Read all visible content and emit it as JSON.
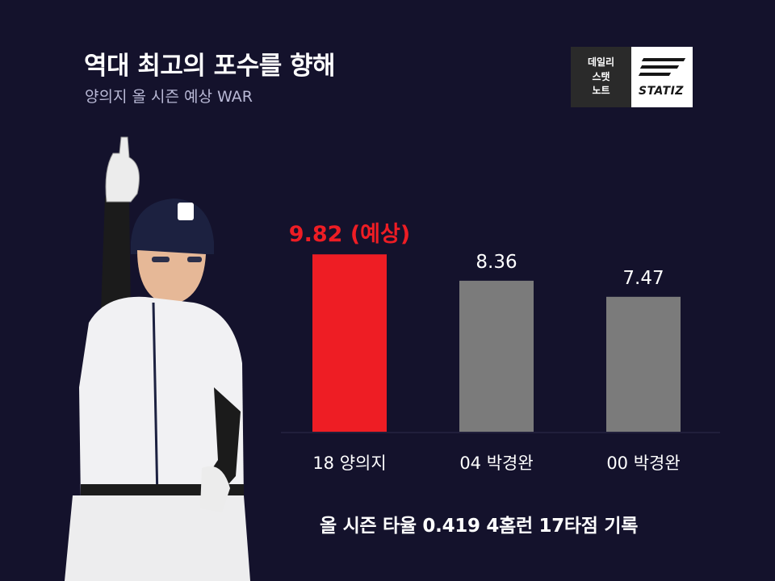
{
  "header": {
    "title": "역대 최고의 포수를 향해",
    "subtitle": "양의지 올 시즌 예상 WAR"
  },
  "logo": {
    "lines": [
      "데일리",
      "스탯",
      "노트"
    ],
    "brand": "STATIZ"
  },
  "footer": {
    "caption": "올 시즌 타율 0.419 4홈런 17타점 기록"
  },
  "colors": {
    "background": "#14122c",
    "highlight": "#ee1d24",
    "neutral": "#7b7b7b"
  },
  "chart_data": {
    "type": "bar",
    "categories": [
      "18 양의지",
      "04 박경완",
      "00 박경완"
    ],
    "values": [
      9.82,
      8.36,
      7.47
    ],
    "value_labels": [
      "9.82 (예상)",
      "8.36",
      "7.47"
    ],
    "highlight_index": 0,
    "ylim": [
      0,
      10.5
    ],
    "grid": false,
    "legend": "none"
  }
}
